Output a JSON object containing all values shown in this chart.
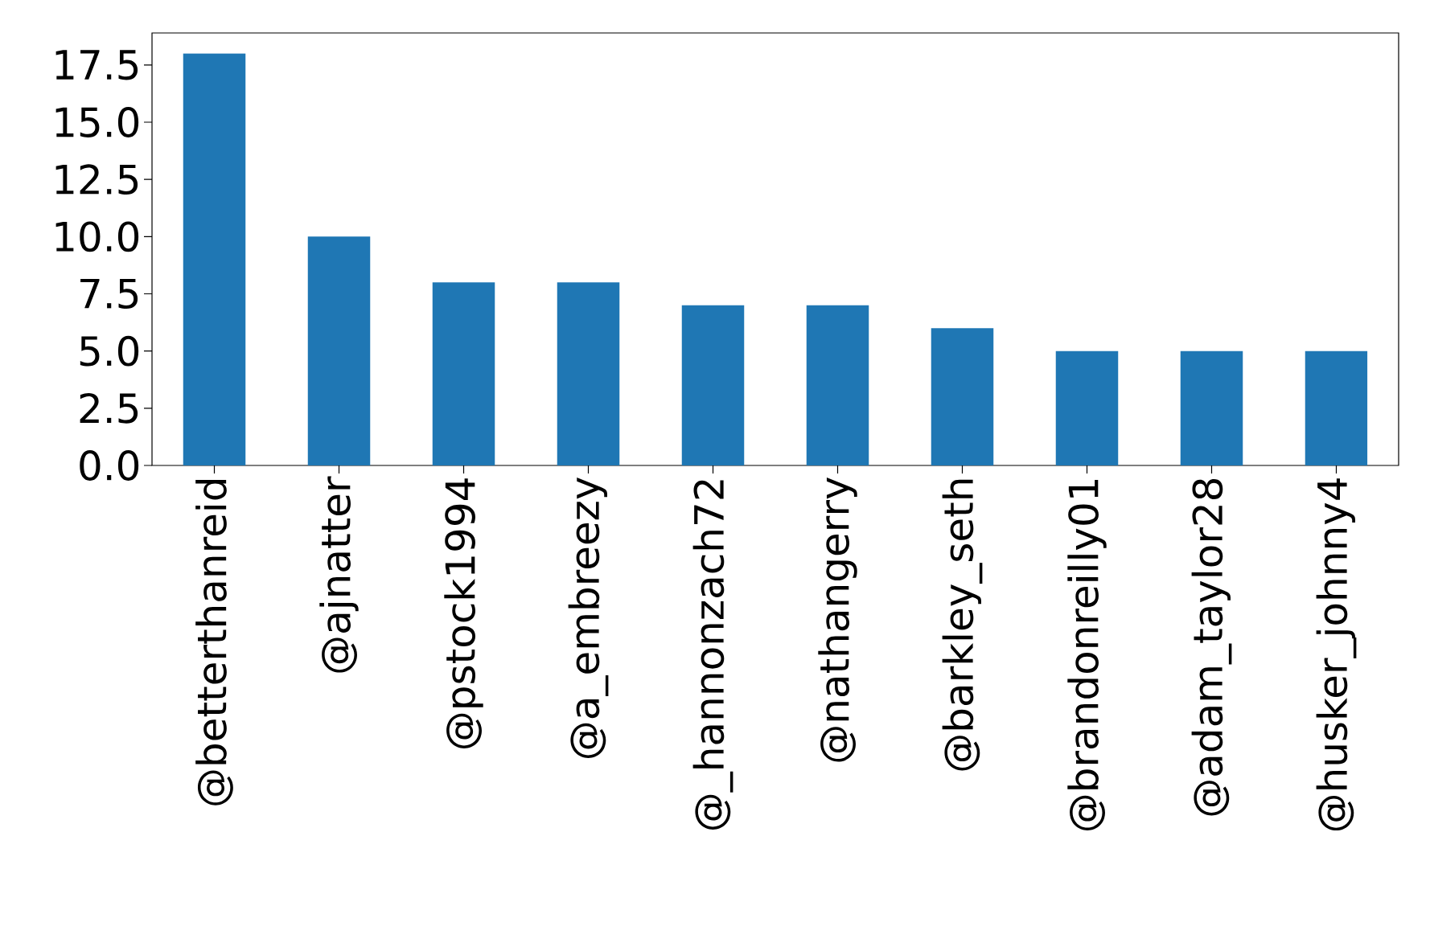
{
  "chart_data": {
    "type": "bar",
    "categories": [
      "@betterthanreid",
      "@ajnatter",
      "@pstock1994",
      "@a_embreezy",
      "@_hannonzach72",
      "@nathangerry",
      "@barkley_seth",
      "@brandonreilly01",
      "@adam_taylor28",
      "@husker_johnny4"
    ],
    "values": [
      18,
      10,
      8,
      8,
      7,
      7,
      6,
      5,
      5,
      5
    ],
    "color": "#1f77b4",
    "ylim": [
      0,
      18.9
    ],
    "yticks": [
      {
        "value": 0,
        "label": "0.0"
      },
      {
        "value": 2.5,
        "label": "2.5"
      },
      {
        "value": 5,
        "label": "5.0"
      },
      {
        "value": 7.5,
        "label": "7.5"
      },
      {
        "value": 10,
        "label": "10.0"
      },
      {
        "value": 12.5,
        "label": "12.5"
      },
      {
        "value": 15,
        "label": "15.0"
      },
      {
        "value": 17.5,
        "label": "17.5"
      }
    ],
    "grid": false
  }
}
